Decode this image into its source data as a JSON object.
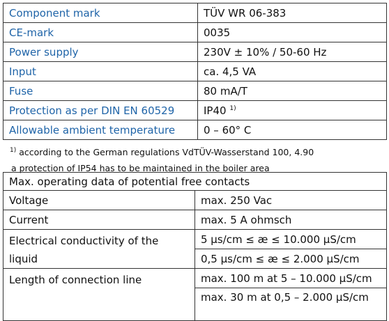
{
  "table1": {
    "rows": [
      [
        "Component mark",
        "TÜV WR 06-383"
      ],
      [
        "CE-mark",
        "0035"
      ],
      [
        "Power supply",
        "230V ± 10% / 50-60 Hz"
      ],
      [
        "Input",
        "ca. 4,5 VA"
      ],
      [
        "Fuse",
        "80 mA/T"
      ],
      [
        "Protection as per DIN EN 60529",
        "IP40"
      ],
      [
        "Allowable ambient temperature",
        "0 – 60°  C"
      ]
    ],
    "note_mark": "1)"
  },
  "footnote": {
    "mark": "1)",
    "lines": [
      "according to the German regulations VdTÜV-Wasserstand 100, 4.90",
      "a protection of IP54 has to be maintained in the boiler area"
    ]
  },
  "table2": {
    "header": "Max. operating data of potential free contacts",
    "rows": [
      {
        "label": "Voltage",
        "values": [
          "max. 250 Vac"
        ]
      },
      {
        "label": "Current",
        "values": [
          "max. 5 A ohmsch"
        ]
      },
      {
        "label": "Electrical conductivity of the liquid",
        "values": [
          "5 µs/cm ≤ æ ≤ 10.000 µS/cm",
          "0,5 µs/cm ≤ æ ≤ 2.000 µS/cm"
        ]
      },
      {
        "label": "Length of connection line",
        "values": [
          "max. 100 m at 5 – 10.000 µS/cm",
          "max. 30 m at 0,5 – 2.000 µS/cm"
        ]
      }
    ]
  }
}
